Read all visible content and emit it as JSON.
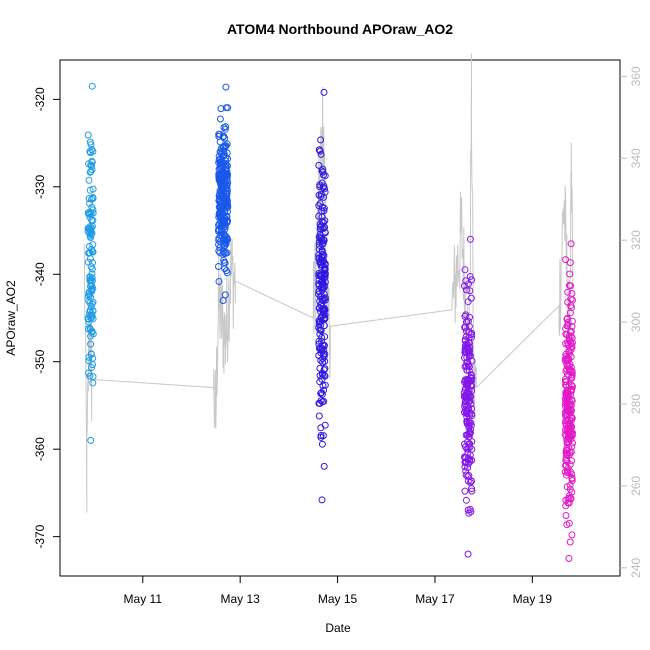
{
  "chart_data": {
    "type": "scatter",
    "title": "ATOM4 Northbound APOraw_AO2",
    "xlabel": "Date",
    "ylabel": "APOraw_AO2",
    "x_range_days": [
      9.3,
      20.8
    ],
    "ylim": [
      -374.5,
      -315.5
    ],
    "y2lim": [
      238,
      364
    ],
    "x_ticks": [
      {
        "value": 11,
        "label": "May 11"
      },
      {
        "value": 13,
        "label": "May 13"
      },
      {
        "value": 15,
        "label": "May 15"
      },
      {
        "value": 17,
        "label": "May 17"
      },
      {
        "value": 19,
        "label": "May 19"
      }
    ],
    "y_ticks": [
      -320,
      -330,
      -340,
      -350,
      -360,
      -370
    ],
    "y2_ticks": [
      240,
      260,
      280,
      300,
      320,
      340,
      360
    ],
    "grid": false,
    "series_points": [
      {
        "x_center": 9.93,
        "x_spread": 0.11,
        "y_min": -359,
        "y_max": -318.5,
        "color": "#1e9be6",
        "n": 120
      },
      {
        "x_center": 12.65,
        "x_spread": 0.19,
        "y_min": -343,
        "y_max": -318.6,
        "color": "#1a58e8",
        "n": 260
      },
      {
        "x_center": 14.68,
        "x_spread": 0.14,
        "y_min": -365.8,
        "y_max": -319.2,
        "color": "#2f18e0",
        "n": 210
      },
      {
        "x_center": 17.68,
        "x_spread": 0.16,
        "y_min": -372,
        "y_max": -336,
        "color": "#8418e8",
        "n": 200
      },
      {
        "x_center": 19.75,
        "x_spread": 0.15,
        "y_min": -372.5,
        "y_max": -336.5,
        "color": "#e21ac8",
        "n": 230
      }
    ],
    "series_line": {
      "color": "#c8c8c8",
      "y_axis": "right",
      "path": [
        {
          "x": 9.8,
          "y": 315
        },
        {
          "x": 9.85,
          "y": 262
        },
        {
          "x": 9.9,
          "y": 300
        },
        {
          "x": 9.95,
          "y": 286
        },
        {
          "x": 12.45,
          "y": 284
        },
        {
          "x": 12.5,
          "y": 276
        },
        {
          "x": 12.55,
          "y": 305
        },
        {
          "x": 12.7,
          "y": 296
        },
        {
          "x": 12.8,
          "y": 312
        },
        {
          "x": 12.9,
          "y": 310
        },
        {
          "x": 14.5,
          "y": 301
        },
        {
          "x": 14.7,
          "y": 348
        },
        {
          "x": 14.8,
          "y": 299
        },
        {
          "x": 14.85,
          "y": 299
        },
        {
          "x": 17.35,
          "y": 303
        },
        {
          "x": 17.55,
          "y": 322
        },
        {
          "x": 17.7,
          "y": 290
        },
        {
          "x": 17.75,
          "y": 353
        },
        {
          "x": 17.8,
          "y": 284
        },
        {
          "x": 17.85,
          "y": 284
        },
        {
          "x": 19.55,
          "y": 304
        },
        {
          "x": 19.65,
          "y": 330
        },
        {
          "x": 19.75,
          "y": 298
        },
        {
          "x": 19.8,
          "y": 332
        },
        {
          "x": 19.85,
          "y": 296
        }
      ]
    }
  }
}
